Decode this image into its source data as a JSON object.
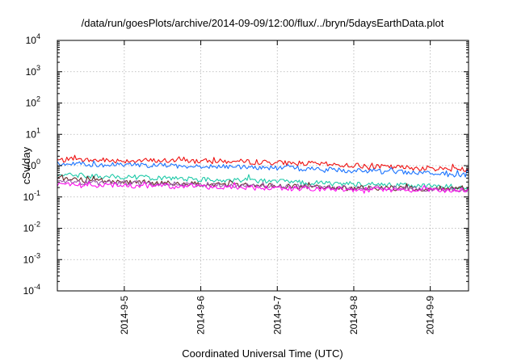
{
  "chart_data": {
    "type": "line",
    "title": "/data/run/goesPlots/archive/2014-09-09/12:00/flux/../bryn/5daysEarthData.plot",
    "xlabel": "Coordinated Universal Time (UTC)",
    "ylabel": "cSv/day",
    "yscale": "log",
    "ylim": [
      0.0001,
      10000
    ],
    "xlim": [
      "2014-09-04T03:00",
      "2014-09-09T12:00"
    ],
    "grid": true,
    "x_ticks": [
      "2014-9-5",
      "2014-9-6",
      "2014-9-7",
      "2014-9-8",
      "2014-9-9"
    ],
    "x_tick_dates": [
      "2014-09-05T00:00",
      "2014-09-06T00:00",
      "2014-09-07T00:00",
      "2014-09-08T00:00",
      "2014-09-09T00:00"
    ],
    "y_ticks": [
      {
        "value": 0.0001,
        "base": "10",
        "exp": "-4"
      },
      {
        "value": 0.001,
        "base": "10",
        "exp": "-3"
      },
      {
        "value": 0.01,
        "base": "10",
        "exp": "-2"
      },
      {
        "value": 0.1,
        "base": "10",
        "exp": "-1"
      },
      {
        "value": 1,
        "base": "10",
        "exp": "0"
      },
      {
        "value": 10,
        "base": "10",
        "exp": "1"
      },
      {
        "value": 100,
        "base": "10",
        "exp": "2"
      },
      {
        "value": 1000,
        "base": "10",
        "exp": "3"
      },
      {
        "value": 10000,
        "base": "10",
        "exp": "4"
      }
    ],
    "x": [
      "2014-09-04T03:00",
      "2014-09-04T12:00",
      "2014-09-05T00:00",
      "2014-09-05T12:00",
      "2014-09-06T00:00",
      "2014-09-06T12:00",
      "2014-09-07T00:00",
      "2014-09-07T12:00",
      "2014-09-08T00:00",
      "2014-09-08T12:00",
      "2014-09-09T00:00",
      "2014-09-09T12:00"
    ],
    "series": [
      {
        "color": "#ee1111",
        "values": [
          1.5,
          1.5,
          1.45,
          1.45,
          1.4,
          1.35,
          1.25,
          1.15,
          1.0,
          0.9,
          0.82,
          0.75
        ]
      },
      {
        "color": "#1a73ff",
        "values": [
          1.15,
          1.1,
          1.05,
          1.0,
          0.98,
          0.92,
          0.85,
          0.78,
          0.7,
          0.63,
          0.57,
          0.48
        ]
      },
      {
        "color": "#1fc9a8",
        "values": [
          0.5,
          0.47,
          0.43,
          0.4,
          0.37,
          0.34,
          0.31,
          0.28,
          0.26,
          0.24,
          0.22,
          0.21
        ]
      },
      {
        "color": "#6a2a2a",
        "values": [
          0.38,
          0.34,
          0.31,
          0.28,
          0.26,
          0.24,
          0.22,
          0.21,
          0.2,
          0.19,
          0.18,
          0.18
        ]
      },
      {
        "color": "#9a5aa8",
        "values": [
          0.3,
          0.29,
          0.28,
          0.26,
          0.25,
          0.23,
          0.22,
          0.21,
          0.2,
          0.19,
          0.18,
          0.17
        ]
      },
      {
        "color": "#ff11ee",
        "values": [
          0.25,
          0.24,
          0.23,
          0.22,
          0.21,
          0.2,
          0.19,
          0.18,
          0.17,
          0.17,
          0.16,
          0.16
        ]
      }
    ]
  }
}
